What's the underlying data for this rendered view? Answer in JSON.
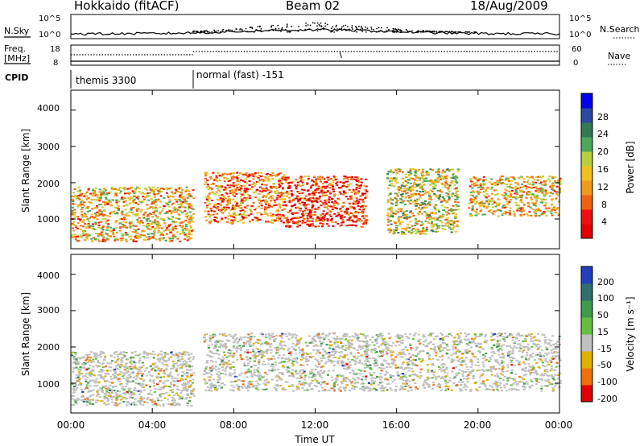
{
  "header": {
    "title": "Hokkaido (fitACF)",
    "beam": "Beam 02",
    "date": "18/Aug/2009"
  },
  "left_labels": {
    "nsky": "N.Sky",
    "freq_line1": "Freq.",
    "freq_line2": "[MHz]",
    "cpid": "CPID"
  },
  "right_labels": {
    "nsearch": "N.Search",
    "nave": "Nave"
  },
  "nsky_ticks": [
    "10^5",
    "10^0"
  ],
  "nsearch_ticks": [
    "10^5",
    "10^0"
  ],
  "freq_ticks": [
    "18",
    "8"
  ],
  "nave_ticks": [
    "60",
    "0"
  ],
  "cpid": {
    "segments": [
      {
        "label": "themis 3300",
        "start_hour": 0,
        "end_hour": 6
      },
      {
        "label": "normal (fast) -151",
        "start_hour": 6,
        "end_hour": 24
      }
    ]
  },
  "power_panel": {
    "ylabel": "Slant Range [km]",
    "yticks": [
      "4000",
      "3000",
      "2000",
      "1000"
    ],
    "colorbar_label": "Power [dB]",
    "colorbar_ticks": [
      "28",
      "24",
      "20",
      "16",
      "12",
      "8",
      "4"
    ],
    "colors": [
      "#0000ee",
      "#2a48a0",
      "#2f7a52",
      "#4ea85a",
      "#b8d040",
      "#f0c020",
      "#f09a20",
      "#f06010",
      "#ee1010",
      "#e00000"
    ]
  },
  "velocity_panel": {
    "ylabel": "Slant Range [km]",
    "yticks": [
      "4000",
      "3000",
      "2000",
      "1000"
    ],
    "colorbar_label": "Velocity [m s⁻¹]",
    "colorbar_ticks": [
      "200",
      "100",
      "50",
      "15",
      "-15",
      "-50",
      "-100",
      "-200"
    ],
    "colors": [
      "#2040c0",
      "#2f6f70",
      "#3f9a4a",
      "#66c040",
      "#c0c0c0",
      "#e0b000",
      "#f07010",
      "#e00000"
    ]
  },
  "xaxis": {
    "ticks": [
      "00:00",
      "04:00",
      "08:00",
      "12:00",
      "16:00",
      "20:00",
      "00:00"
    ],
    "label": "Time UT"
  },
  "chart_data": {
    "type": "heatmap",
    "title": "Hokkaido (fitACF)",
    "subtitle": "Beam 02",
    "date": "18/Aug/2009",
    "xlabel": "Time UT",
    "ylabel": "Slant Range [km]",
    "xlim": [
      0,
      24
    ],
    "ylim": [
      180,
      4550
    ],
    "panels": [
      {
        "name": "Power",
        "colorbar_label": "Power [dB]",
        "colorbar_ticks": [
          4,
          8,
          12,
          16,
          20,
          24,
          28
        ],
        "echo_regions": [
          {
            "t_start": 0.0,
            "t_end": 6.0,
            "range_min": 400,
            "range_max": 1900,
            "level": 18
          },
          {
            "t_start": 6.5,
            "t_end": 10.5,
            "range_min": 900,
            "range_max": 2300,
            "level": 22
          },
          {
            "t_start": 10.5,
            "t_end": 14.5,
            "range_min": 800,
            "range_max": 2200,
            "level": 26
          },
          {
            "t_start": 15.5,
            "t_end": 19.0,
            "range_min": 600,
            "range_max": 2400,
            "level": 16
          },
          {
            "t_start": 19.5,
            "t_end": 24.0,
            "range_min": 1100,
            "range_max": 2200,
            "level": 18
          }
        ]
      },
      {
        "name": "Velocity",
        "colorbar_label": "Velocity [m s-1]",
        "colorbar_ticks": [
          -200,
          -100,
          -50,
          -15,
          15,
          50,
          100,
          200
        ],
        "echo_regions": [
          {
            "t_start": 0.0,
            "t_end": 6.0,
            "range_min": 400,
            "range_max": 1900,
            "level": 0
          },
          {
            "t_start": 6.5,
            "t_end": 24.0,
            "range_min": 800,
            "range_max": 2400,
            "level": 0
          }
        ]
      }
    ],
    "cpid": [
      {
        "label": "themis 3300",
        "start_hour": 0
      },
      {
        "label": "normal (fast) -151",
        "start_hour": 6
      }
    ]
  }
}
